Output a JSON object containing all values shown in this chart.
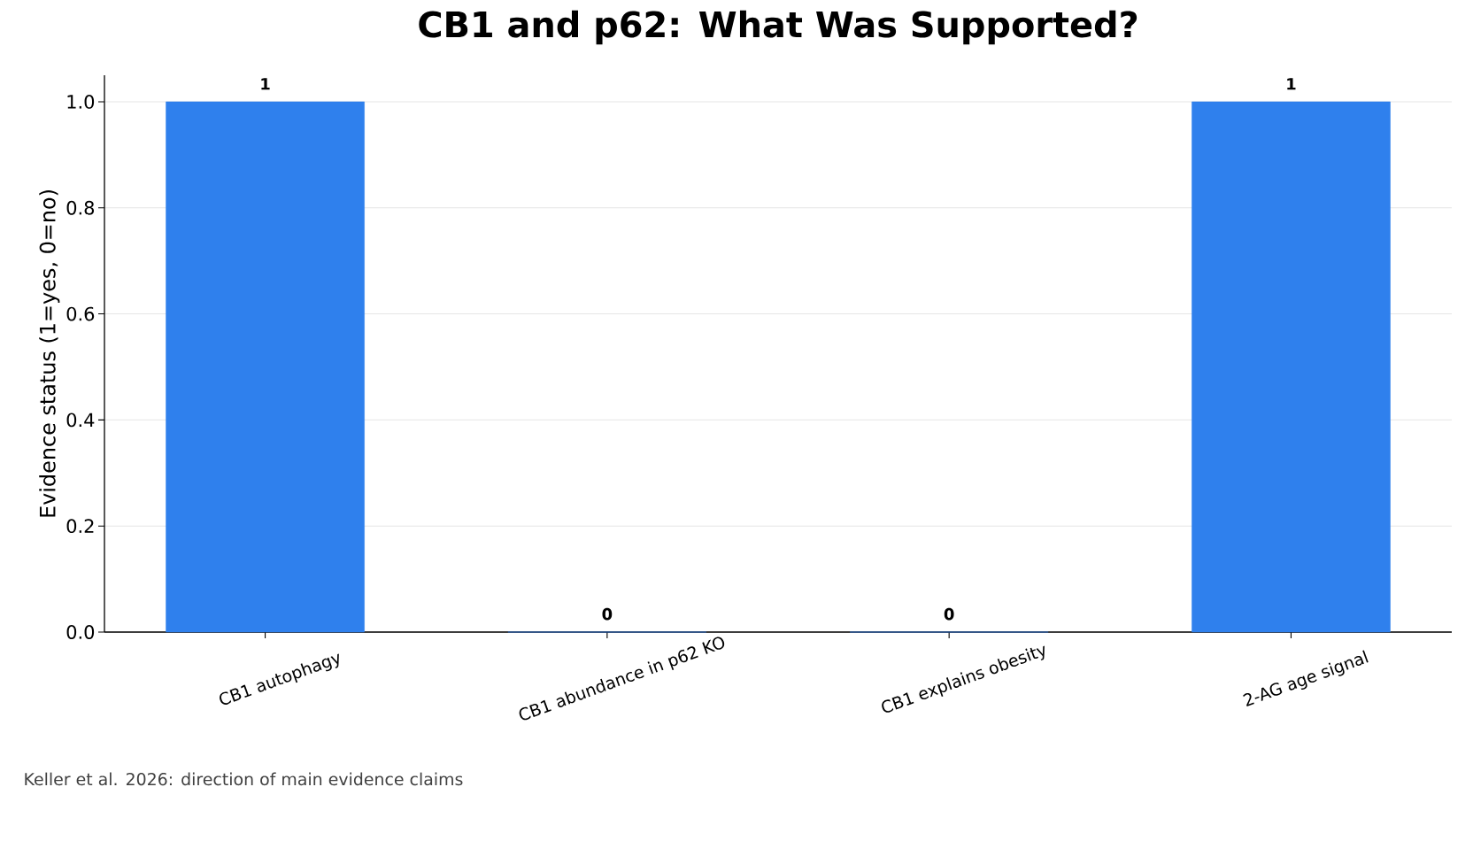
{
  "chart_data": {
    "type": "bar",
    "title": "CB1 and p62: What Was Supported?",
    "ylabel": "Evidence status (1=yes, 0=no)",
    "categories": [
      "CB1 autophagy",
      "CB1 abundance in p62 KO",
      "CB1 explains obesity",
      "2-AG age signal"
    ],
    "values": [
      1,
      0,
      0,
      1
    ],
    "color": "#2f80ed",
    "data_labels": true,
    "ylim": [
      0,
      1.05
    ],
    "yticks": [
      {
        "value": 0,
        "label": "0.0"
      },
      0.2,
      0.4,
      0.6,
      0.8,
      {
        "value": 1,
        "label": "1.0"
      }
    ],
    "grid": "y",
    "annotations": [
      "Keller et al. 2026: direction of main evidence claims"
    ]
  }
}
